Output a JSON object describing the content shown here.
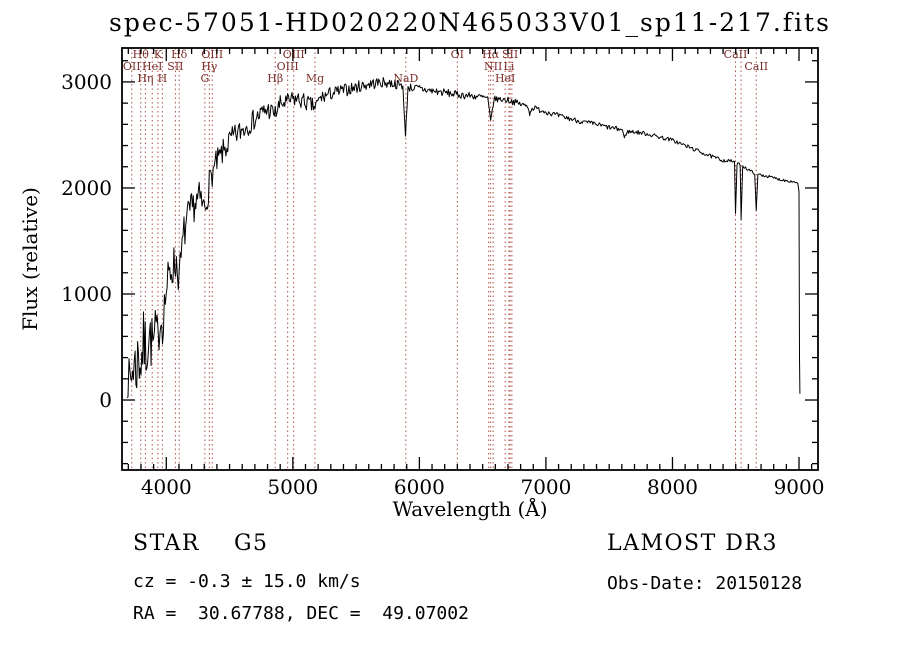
{
  "title": "spec-57051-HD020220N465033V01_sp11-217.fits",
  "footer": {
    "class_label": "STAR    G5",
    "survey": "LAMOST DR3",
    "cz": "cz = -0.3 ± 15.0 km/s",
    "obs_date": "Obs-Date: 20150128",
    "coords": "RA =  30.67788, DEC =  49.07002"
  },
  "chart_data": {
    "type": "line",
    "title": "spec-57051-HD020220N465033V01_sp11-217.fits",
    "xlabel": "Wavelength (Å)",
    "ylabel": "Flux (relative)",
    "xlim": [
      3650,
      9150
    ],
    "ylim": [
      -660,
      3320
    ],
    "xticks": [
      4000,
      5000,
      6000,
      7000,
      8000,
      9000
    ],
    "yticks": [
      0,
      1000,
      2000,
      3000
    ],
    "x_minor_step": 100,
    "y_minor_step": 200,
    "grid": false,
    "line_color": "#000000",
    "marker_color": "#b0504a",
    "label_color": "#7a2f2a",
    "noise_seed": 7,
    "anchors": [
      [
        3690,
        120,
        200
      ],
      [
        3705,
        200,
        400
      ],
      [
        3720,
        180,
        500
      ],
      [
        3740,
        350,
        600
      ],
      [
        3760,
        300,
        650
      ],
      [
        3780,
        420,
        650
      ],
      [
        3800,
        380,
        700
      ],
      [
        3820,
        520,
        650
      ],
      [
        3840,
        480,
        650
      ],
      [
        3860,
        620,
        600
      ],
      [
        3880,
        560,
        550
      ],
      [
        3900,
        520,
        500
      ],
      [
        3920,
        680,
        450
      ],
      [
        3934,
        560,
        400
      ],
      [
        3950,
        780,
        450
      ],
      [
        3970,
        720,
        400
      ],
      [
        4000,
        1040,
        450
      ],
      [
        4040,
        1240,
        400
      ],
      [
        4080,
        1300,
        400
      ],
      [
        4102,
        1160,
        350
      ],
      [
        4140,
        1580,
        350
      ],
      [
        4180,
        1740,
        350
      ],
      [
        4220,
        1840,
        320
      ],
      [
        4260,
        1900,
        320
      ],
      [
        4305,
        1800,
        300
      ],
      [
        4340,
        2040,
        280
      ],
      [
        4363,
        2140,
        260
      ],
      [
        4400,
        2240,
        260
      ],
      [
        4450,
        2340,
        240
      ],
      [
        4500,
        2440,
        240
      ],
      [
        4550,
        2500,
        220
      ],
      [
        4600,
        2550,
        220
      ],
      [
        4650,
        2600,
        210
      ],
      [
        4700,
        2650,
        200
      ],
      [
        4750,
        2700,
        200
      ],
      [
        4800,
        2740,
        190
      ],
      [
        4861,
        2700,
        170
      ],
      [
        4900,
        2790,
        170
      ],
      [
        4959,
        2810,
        160
      ],
      [
        5007,
        2840,
        160
      ],
      [
        5050,
        2830,
        160
      ],
      [
        5100,
        2810,
        160
      ],
      [
        5175,
        2760,
        150
      ],
      [
        5220,
        2850,
        140
      ],
      [
        5300,
        2890,
        130
      ],
      [
        5400,
        2920,
        120
      ],
      [
        5500,
        2950,
        115
      ],
      [
        5600,
        2980,
        110
      ],
      [
        5700,
        2995,
        100
      ],
      [
        5800,
        2985,
        95
      ],
      [
        5870,
        2960,
        80
      ],
      [
        5890,
        2480,
        40
      ],
      [
        5910,
        2950,
        80
      ],
      [
        6000,
        2935,
        85
      ],
      [
        6100,
        2915,
        80
      ],
      [
        6200,
        2900,
        75
      ],
      [
        6300,
        2880,
        70
      ],
      [
        6400,
        2870,
        70
      ],
      [
        6480,
        2860,
        65
      ],
      [
        6540,
        2845,
        55
      ],
      [
        6563,
        2630,
        30
      ],
      [
        6590,
        2840,
        55
      ],
      [
        6700,
        2830,
        60
      ],
      [
        6800,
        2790,
        60
      ],
      [
        6860,
        2770,
        45
      ],
      [
        6872,
        2690,
        30
      ],
      [
        6890,
        2760,
        45
      ],
      [
        6900,
        2755,
        55
      ],
      [
        7000,
        2720,
        50
      ],
      [
        7100,
        2680,
        50
      ],
      [
        7200,
        2650,
        48
      ],
      [
        7300,
        2620,
        48
      ],
      [
        7400,
        2600,
        45
      ],
      [
        7500,
        2570,
        45
      ],
      [
        7600,
        2550,
        42
      ],
      [
        7605,
        2545,
        35
      ],
      [
        7620,
        2470,
        25
      ],
      [
        7640,
        2530,
        35
      ],
      [
        7700,
        2530,
        42
      ],
      [
        7800,
        2510,
        40
      ],
      [
        7900,
        2480,
        40
      ],
      [
        8000,
        2450,
        38
      ],
      [
        8100,
        2400,
        38
      ],
      [
        8200,
        2350,
        36
      ],
      [
        8300,
        2300,
        36
      ],
      [
        8400,
        2260,
        34
      ],
      [
        8490,
        2250,
        30
      ],
      [
        8498,
        1750,
        20
      ],
      [
        8510,
        2230,
        30
      ],
      [
        8535,
        2220,
        30
      ],
      [
        8542,
        1700,
        20
      ],
      [
        8555,
        2210,
        30
      ],
      [
        8600,
        2170,
        28
      ],
      [
        8650,
        2140,
        28
      ],
      [
        8662,
        1780,
        20
      ],
      [
        8675,
        2130,
        28
      ],
      [
        8750,
        2110,
        26
      ],
      [
        8850,
        2080,
        26
      ],
      [
        8950,
        2060,
        24
      ],
      [
        8990,
        2050,
        20
      ],
      [
        9000,
        1960,
        12
      ],
      [
        9004,
        400,
        0
      ],
      [
        9007,
        60,
        0
      ]
    ],
    "spectral_lines": [
      {
        "x": 3727,
        "label": "OII",
        "row": 2
      },
      {
        "x": 3798,
        "label": "Hθ",
        "row": 1
      },
      {
        "x": 3835,
        "label": "Hη",
        "row": 3
      },
      {
        "x": 3889,
        "label": "HeI",
        "row": 2
      },
      {
        "x": 3934,
        "label": "K",
        "row": 1
      },
      {
        "x": 3969,
        "label": "H",
        "row": 3
      },
      {
        "x": 4072,
        "label": "SII",
        "row": 2
      },
      {
        "x": 4102,
        "label": "Hδ",
        "row": 1
      },
      {
        "x": 4305,
        "label": "G",
        "row": 3
      },
      {
        "x": 4340,
        "label": "Hγ",
        "row": 2
      },
      {
        "x": 4363,
        "label": "OIII",
        "row": 1
      },
      {
        "x": 4861,
        "label": "Hβ",
        "row": 3
      },
      {
        "x": 4959,
        "label": "OIII",
        "row": 2
      },
      {
        "x": 5007,
        "label": "OIII",
        "row": 1
      },
      {
        "x": 5175,
        "label": "Mg",
        "row": 3
      },
      {
        "x": 5893,
        "label": "NaD",
        "row": 3
      },
      {
        "x": 6300,
        "label": "OI",
        "row": 1
      },
      {
        "x": 6548,
        "label": "",
        "row": 2
      },
      {
        "x": 6563,
        "label": "Hα",
        "row": 1
      },
      {
        "x": 6583,
        "label": "NII",
        "row": 2
      },
      {
        "x": 6678,
        "label": "HeI",
        "row": 3
      },
      {
        "x": 6708,
        "label": "Li",
        "row": 2
      },
      {
        "x": 6717,
        "label": "SII",
        "row": 1
      },
      {
        "x": 6731,
        "label": "",
        "row": 2
      },
      {
        "x": 8498,
        "label": "CaII",
        "row": 1
      },
      {
        "x": 8542,
        "label": "",
        "row": 3
      },
      {
        "x": 8662,
        "label": "CaII",
        "row": 2
      }
    ]
  }
}
